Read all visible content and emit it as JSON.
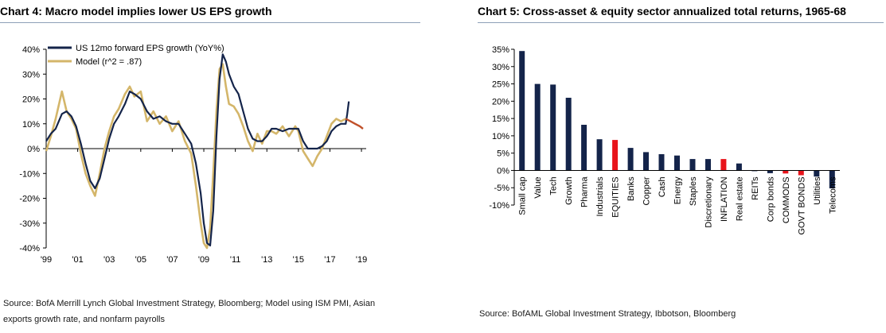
{
  "charts": {
    "left": {
      "title": "Chart 4: Macro model implies lower US EPS growth",
      "source_line1": "Source: BofA Merrill Lynch Global Investment Strategy, Bloomberg; Model using ISM PMI, Asian",
      "source_line2": "exports growth rate, and nonfarm payrolls"
    },
    "right": {
      "title": "Chart 5: Cross-asset & equity sector annualized total returns, 1965-68",
      "source": "Source: BofAML Global Investment Strategy, Ibbotson, Bloomberg"
    }
  },
  "colors": {
    "navy": "#14244a",
    "gold": "#d4b66a",
    "red": "#e8141b",
    "forecast": "#c0502a",
    "rule": "#8da0b8"
  },
  "chart_data": [
    {
      "type": "line",
      "title": "Chart 4: Macro model implies lower US EPS growth",
      "xlabel": "",
      "ylabel": "",
      "ylim": [
        -0.4,
        0.4
      ],
      "xlim": [
        1999,
        2019.3
      ],
      "yticks": [
        "40%",
        "30%",
        "20%",
        "10%",
        "0%",
        "-10%",
        "-20%",
        "-30%",
        "-40%"
      ],
      "ytick_values": [
        0.4,
        0.3,
        0.2,
        0.1,
        0.0,
        -0.1,
        -0.2,
        -0.3,
        -0.4
      ],
      "xticks": [
        "'99",
        "'01",
        "'03",
        "'05",
        "'07",
        "'09",
        "'11",
        "'13",
        "'15",
        "'17",
        "'19"
      ],
      "xtick_values": [
        1999,
        2001,
        2003,
        2005,
        2007,
        2009,
        2011,
        2013,
        2015,
        2017,
        2019
      ],
      "legend_position": "top-left",
      "series": [
        {
          "name": "US 12mo forward EPS growth (YoY%)",
          "color": "#14244a",
          "x": [
            1999.0,
            1999.3,
            1999.6,
            2000.0,
            2000.3,
            2000.6,
            2000.9,
            2001.2,
            2001.5,
            2001.8,
            2002.1,
            2002.4,
            2002.7,
            2003.0,
            2003.3,
            2003.6,
            2004.0,
            2004.3,
            2004.6,
            2005.0,
            2005.4,
            2005.8,
            2006.2,
            2006.6,
            2007.0,
            2007.4,
            2007.8,
            2008.2,
            2008.5,
            2008.8,
            2009.0,
            2009.2,
            2009.4,
            2009.6,
            2009.8,
            2010.0,
            2010.2,
            2010.4,
            2010.6,
            2010.9,
            2011.2,
            2011.5,
            2011.8,
            2012.1,
            2012.4,
            2012.7,
            2013.0,
            2013.3,
            2013.6,
            2014.0,
            2014.4,
            2014.8,
            2015.0,
            2015.3,
            2015.6,
            2015.9,
            2016.2,
            2016.5,
            2016.8,
            2017.1,
            2017.4,
            2017.7,
            2018.0,
            2018.1,
            2018.2
          ],
          "values": [
            0.03,
            0.06,
            0.08,
            0.14,
            0.15,
            0.13,
            0.09,
            0.02,
            -0.06,
            -0.13,
            -0.16,
            -0.12,
            -0.04,
            0.04,
            0.1,
            0.13,
            0.18,
            0.23,
            0.22,
            0.2,
            0.15,
            0.12,
            0.13,
            0.11,
            0.1,
            0.1,
            0.06,
            0.02,
            -0.06,
            -0.18,
            -0.3,
            -0.38,
            -0.39,
            -0.25,
            0.05,
            0.28,
            0.38,
            0.35,
            0.3,
            0.25,
            0.22,
            0.15,
            0.08,
            0.04,
            0.03,
            0.03,
            0.05,
            0.08,
            0.08,
            0.07,
            0.08,
            0.08,
            0.08,
            0.03,
            0.0,
            0.0,
            0.0,
            0.01,
            0.03,
            0.07,
            0.09,
            0.1,
            0.1,
            0.14,
            0.19
          ]
        },
        {
          "name": "Model (r^2 = .87)",
          "color": "#d4b66a",
          "x": [
            1999.0,
            1999.3,
            1999.6,
            2000.0,
            2000.3,
            2000.6,
            2000.9,
            2001.2,
            2001.5,
            2001.8,
            2002.1,
            2002.4,
            2002.7,
            2003.0,
            2003.3,
            2003.6,
            2004.0,
            2004.3,
            2004.6,
            2005.0,
            2005.4,
            2005.8,
            2006.2,
            2006.6,
            2007.0,
            2007.4,
            2007.8,
            2008.2,
            2008.5,
            2008.8,
            2009.0,
            2009.2,
            2009.4,
            2009.6,
            2009.8,
            2010.0,
            2010.2,
            2010.4,
            2010.6,
            2010.9,
            2011.2,
            2011.5,
            2011.8,
            2012.1,
            2012.4,
            2012.7,
            2013.0,
            2013.3,
            2013.6,
            2014.0,
            2014.4,
            2014.8,
            2015.0,
            2015.3,
            2015.6,
            2015.9,
            2016.2,
            2016.5,
            2016.8,
            2017.1,
            2017.4,
            2017.7,
            2018.0
          ],
          "values": [
            -0.01,
            0.05,
            0.12,
            0.23,
            0.15,
            0.12,
            0.08,
            -0.02,
            -0.1,
            -0.15,
            -0.19,
            -0.1,
            0.0,
            0.07,
            0.13,
            0.16,
            0.22,
            0.25,
            0.21,
            0.23,
            0.11,
            0.15,
            0.1,
            0.13,
            0.07,
            0.11,
            0.03,
            -0.02,
            -0.15,
            -0.3,
            -0.38,
            -0.4,
            -0.32,
            -0.1,
            0.15,
            0.32,
            0.34,
            0.25,
            0.18,
            0.17,
            0.14,
            0.09,
            0.03,
            -0.01,
            0.06,
            0.02,
            0.07,
            0.07,
            0.06,
            0.09,
            0.05,
            0.09,
            0.07,
            -0.01,
            -0.04,
            -0.07,
            -0.03,
            0.0,
            0.05,
            0.1,
            0.12,
            0.11,
            0.12
          ]
        },
        {
          "name": "forecast",
          "color": "#c0502a",
          "x": [
            2018.0,
            2018.3,
            2018.6,
            2018.9,
            2019.1
          ],
          "values": [
            0.12,
            0.11,
            0.1,
            0.09,
            0.08
          ]
        }
      ]
    },
    {
      "type": "bar",
      "title": "Chart 5: Cross-asset & equity sector annualized total returns, 1965-68",
      "xlabel": "",
      "ylabel": "",
      "ylim": [
        -0.1,
        0.35
      ],
      "yticks": [
        "35%",
        "30%",
        "25%",
        "20%",
        "15%",
        "10%",
        "5%",
        "0%",
        "-5%",
        "-10%"
      ],
      "ytick_values": [
        0.35,
        0.3,
        0.25,
        0.2,
        0.15,
        0.1,
        0.05,
        0.0,
        -0.05,
        -0.1
      ],
      "categories": [
        "Small cap",
        "Value",
        "Tech",
        "Growth",
        "Pharma",
        "Industrials",
        "EQUITIES",
        "Banks",
        "Copper",
        "Cash",
        "Energy",
        "Staples",
        "Discretionary",
        "INFLATION",
        "Real estate",
        "REITs",
        "Corp bonds",
        "COMMODS",
        "GOVT BONDS",
        "Utilities",
        "Telecoms"
      ],
      "values": [
        0.345,
        0.25,
        0.248,
        0.21,
        0.132,
        0.09,
        0.088,
        0.065,
        0.053,
        0.047,
        0.043,
        0.033,
        0.033,
        0.033,
        0.02,
        -0.002,
        -0.008,
        -0.009,
        -0.014,
        -0.018,
        -0.052
      ],
      "highlight": [
        "EQUITIES",
        "INFLATION",
        "COMMODS",
        "GOVT BONDS"
      ]
    }
  ]
}
